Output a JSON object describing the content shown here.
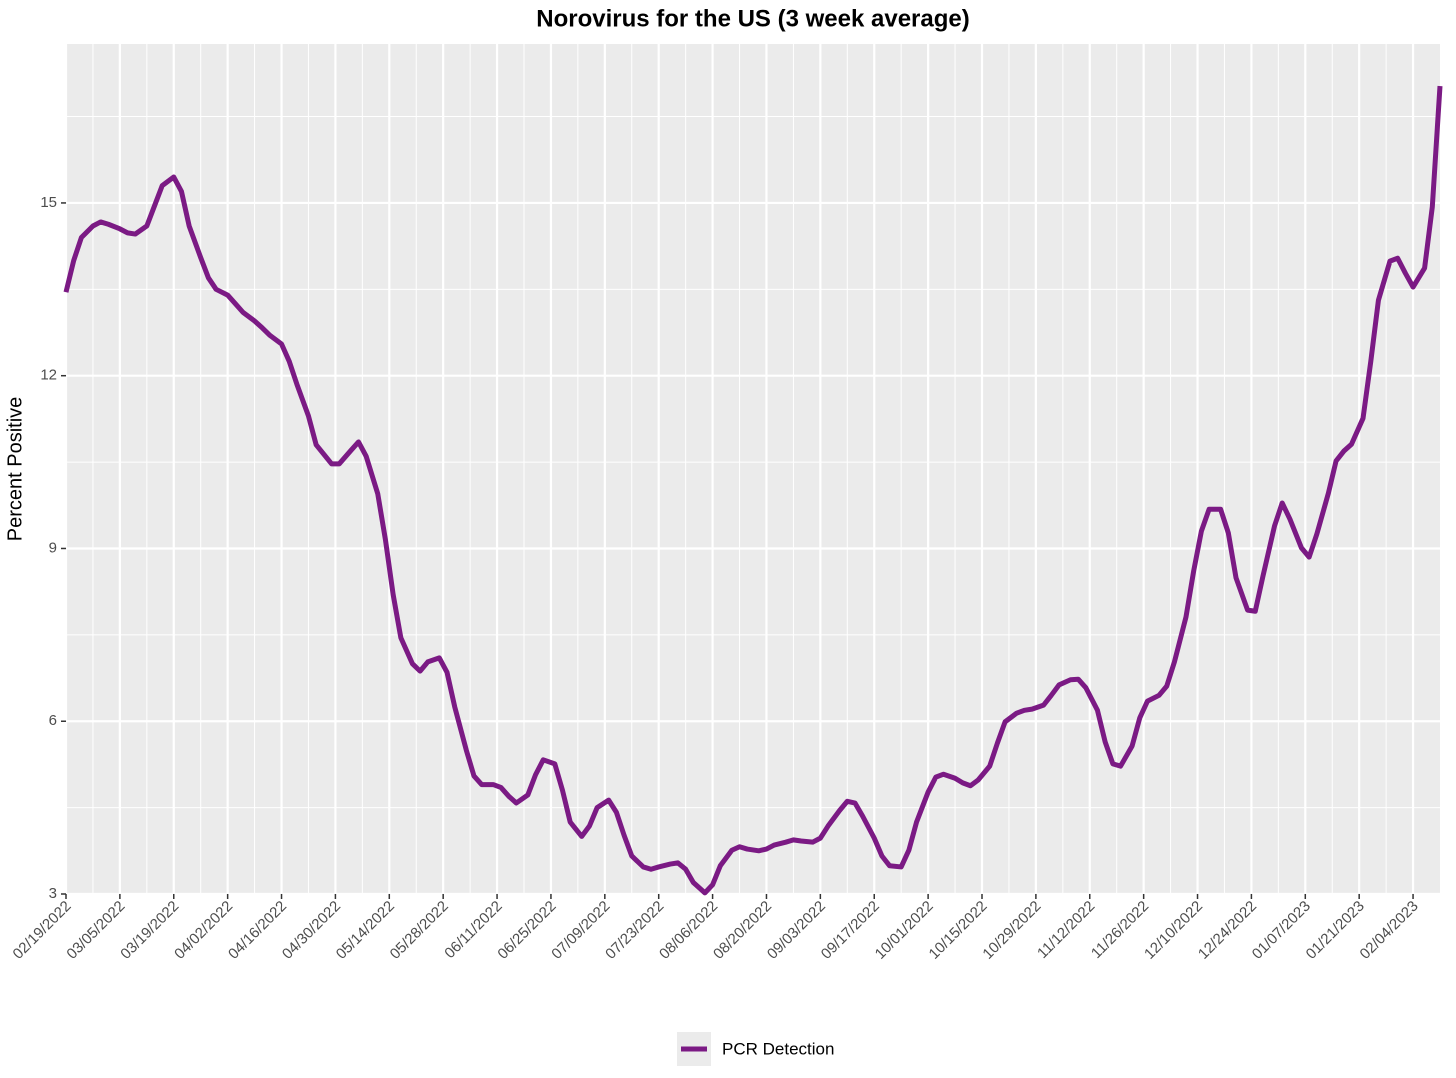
{
  "chart_data": {
    "type": "line",
    "title": "Norovirus for the US (3 week average)",
    "y_label": "Percent Positive",
    "x": [
      "2022-02-19",
      "2022-02-21",
      "2022-02-23",
      "2022-02-26",
      "2022-02-28",
      "2022-03-02",
      "2022-03-05",
      "2022-03-07",
      "2022-03-09",
      "2022-03-12",
      "2022-03-14",
      "2022-03-16",
      "2022-03-19",
      "2022-03-21",
      "2022-03-23",
      "2022-03-26",
      "2022-03-28",
      "2022-03-30",
      "2022-04-02",
      "2022-04-04",
      "2022-04-06",
      "2022-04-09",
      "2022-04-11",
      "2022-04-13",
      "2022-04-16",
      "2022-04-18",
      "2022-04-20",
      "2022-04-23",
      "2022-04-25",
      "2022-04-29",
      "2022-05-01",
      "2022-05-04",
      "2022-05-06",
      "2022-05-08",
      "2022-05-11",
      "2022-05-13",
      "2022-05-15",
      "2022-05-17",
      "2022-05-20",
      "2022-05-22",
      "2022-05-24",
      "2022-05-27",
      "2022-05-29",
      "2022-05-31",
      "2022-06-03",
      "2022-06-05",
      "2022-06-07",
      "2022-06-10",
      "2022-06-12",
      "2022-06-14",
      "2022-06-16",
      "2022-06-19",
      "2022-06-21",
      "2022-06-23",
      "2022-06-26",
      "2022-06-28",
      "2022-06-30",
      "2022-07-03",
      "2022-07-05",
      "2022-07-07",
      "2022-07-10",
      "2022-07-12",
      "2022-07-14",
      "2022-07-16",
      "2022-07-19",
      "2022-07-21",
      "2022-07-23",
      "2022-07-26",
      "2022-07-28",
      "2022-07-30",
      "2022-08-01",
      "2022-08-04",
      "2022-08-06",
      "2022-08-08",
      "2022-08-11",
      "2022-08-13",
      "2022-08-15",
      "2022-08-18",
      "2022-08-20",
      "2022-08-22",
      "2022-08-25",
      "2022-08-27",
      "2022-08-29",
      "2022-09-01",
      "2022-09-03",
      "2022-09-05",
      "2022-09-08",
      "2022-09-10",
      "2022-09-12",
      "2022-09-14",
      "2022-09-17",
      "2022-09-19",
      "2022-09-21",
      "2022-09-24",
      "2022-09-26",
      "2022-09-28",
      "2022-10-01",
      "2022-10-03",
      "2022-10-05",
      "2022-10-08",
      "2022-10-10",
      "2022-10-12",
      "2022-10-14",
      "2022-10-17",
      "2022-10-19",
      "2022-10-21",
      "2022-10-24",
      "2022-10-26",
      "2022-10-28",
      "2022-10-31",
      "2022-11-02",
      "2022-11-04",
      "2022-11-07",
      "2022-11-09",
      "2022-11-11",
      "2022-11-14",
      "2022-11-16",
      "2022-11-18",
      "2022-11-20",
      "2022-11-23",
      "2022-11-25",
      "2022-11-27",
      "2022-11-30",
      "2022-12-02",
      "2022-12-04",
      "2022-12-07",
      "2022-12-09",
      "2022-12-11",
      "2022-12-13",
      "2022-12-16",
      "2022-12-18",
      "2022-12-20",
      "2022-12-23",
      "2022-12-25",
      "2022-12-27",
      "2022-12-30",
      "2023-01-01",
      "2023-01-03",
      "2023-01-06",
      "2023-01-08",
      "2023-01-10",
      "2023-01-13",
      "2023-01-15",
      "2023-01-17",
      "2023-01-19",
      "2023-01-22",
      "2023-01-24",
      "2023-01-26",
      "2023-01-29",
      "2023-01-31",
      "2023-02-02",
      "2023-02-04",
      "2023-02-07",
      "2023-02-09",
      "2023-02-11"
    ],
    "series": [
      {
        "name": "PCR Detection",
        "color": "#7b1a84",
        "values": [
          13.45,
          14.0,
          14.4,
          14.6,
          14.67,
          14.63,
          14.55,
          14.48,
          14.46,
          14.6,
          14.95,
          15.3,
          15.45,
          15.2,
          14.6,
          14.05,
          13.7,
          13.5,
          13.4,
          13.25,
          13.1,
          12.95,
          12.83,
          12.7,
          12.55,
          12.25,
          11.85,
          11.3,
          10.8,
          10.47,
          10.47,
          10.7,
          10.85,
          10.6,
          9.95,
          9.15,
          8.2,
          7.45,
          7.0,
          6.87,
          7.03,
          7.1,
          6.85,
          6.25,
          5.5,
          5.05,
          4.9,
          4.9,
          4.85,
          4.7,
          4.58,
          4.72,
          5.07,
          5.33,
          5.26,
          4.8,
          4.25,
          4.0,
          4.18,
          4.5,
          4.63,
          4.42,
          4.02,
          3.66,
          3.47,
          3.43,
          3.47,
          3.52,
          3.54,
          3.43,
          3.2,
          3.02,
          3.16,
          3.49,
          3.76,
          3.82,
          3.78,
          3.75,
          3.78,
          3.85,
          3.9,
          3.94,
          3.92,
          3.9,
          3.97,
          4.18,
          4.45,
          4.61,
          4.58,
          4.35,
          3.97,
          3.66,
          3.49,
          3.47,
          3.76,
          4.25,
          4.77,
          5.03,
          5.08,
          5.01,
          4.93,
          4.88,
          4.98,
          5.22,
          5.62,
          5.99,
          6.14,
          6.19,
          6.21,
          6.28,
          6.45,
          6.63,
          6.72,
          6.73,
          6.58,
          6.19,
          5.64,
          5.26,
          5.22,
          5.57,
          6.06,
          6.35,
          6.45,
          6.61,
          7.03,
          7.81,
          8.61,
          9.3,
          9.68,
          9.68,
          9.27,
          8.49,
          7.93,
          7.91,
          8.52,
          9.39,
          9.79,
          9.51,
          9.01,
          8.85,
          9.25,
          9.96,
          10.52,
          10.69,
          10.81,
          11.26,
          12.24,
          13.31,
          13.99,
          14.04,
          13.78,
          13.54,
          13.87,
          14.93,
          17.03
        ]
      }
    ],
    "xlim": [
      "2022-02-19",
      "2023-02-11"
    ],
    "xticks": [
      {
        "value": "2022-02-19",
        "label": "02/19/2022"
      },
      {
        "value": "2022-03-05",
        "label": "03/05/2022"
      },
      {
        "value": "2022-03-19",
        "label": "03/19/2022"
      },
      {
        "value": "2022-04-02",
        "label": "04/02/2022"
      },
      {
        "value": "2022-04-16",
        "label": "04/16/2022"
      },
      {
        "value": "2022-04-30",
        "label": "04/30/2022"
      },
      {
        "value": "2022-05-14",
        "label": "05/14/2022"
      },
      {
        "value": "2022-05-28",
        "label": "05/28/2022"
      },
      {
        "value": "2022-06-11",
        "label": "06/11/2022"
      },
      {
        "value": "2022-06-25",
        "label": "06/25/2022"
      },
      {
        "value": "2022-07-09",
        "label": "07/09/2022"
      },
      {
        "value": "2022-07-23",
        "label": "07/23/2022"
      },
      {
        "value": "2022-08-06",
        "label": "08/06/2022"
      },
      {
        "value": "2022-08-20",
        "label": "08/20/2022"
      },
      {
        "value": "2022-09-03",
        "label": "09/03/2022"
      },
      {
        "value": "2022-09-17",
        "label": "09/17/2022"
      },
      {
        "value": "2022-10-01",
        "label": "10/01/2022"
      },
      {
        "value": "2022-10-15",
        "label": "10/15/2022"
      },
      {
        "value": "2022-10-29",
        "label": "10/29/2022"
      },
      {
        "value": "2022-11-12",
        "label": "11/12/2022"
      },
      {
        "value": "2022-11-26",
        "label": "11/26/2022"
      },
      {
        "value": "2022-12-10",
        "label": "12/10/2022"
      },
      {
        "value": "2022-12-24",
        "label": "12/24/2022"
      },
      {
        "value": "2023-01-07",
        "label": "01/07/2023"
      },
      {
        "value": "2023-01-21",
        "label": "01/21/2023"
      },
      {
        "value": "2023-02-04",
        "label": "02/04/2023"
      }
    ],
    "ylim": [
      3,
      17.76
    ],
    "yticks": [
      3,
      6,
      9,
      12,
      15
    ],
    "grid": true,
    "legend": "bottom"
  }
}
